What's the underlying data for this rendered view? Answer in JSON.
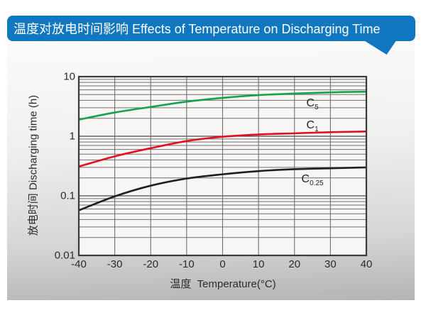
{
  "banner": {
    "title": "温度对放电时间影响 Effects of Temperature on Discharging Time",
    "bg_color": "#1077c0",
    "text_color": "#ffffff"
  },
  "chart_data": {
    "type": "line",
    "title": "温度对放电时间影响 Effects of Temperature on Discharging Time",
    "xlabel": "温度  Temperature(°C)",
    "ylabel": "放电时间 Discharging time (h)",
    "x_scale": "linear",
    "y_scale": "log",
    "xlim": [
      -40,
      40
    ],
    "ylim": [
      0.01,
      10
    ],
    "grid": true,
    "x_ticks": [
      -40,
      -30,
      -20,
      -10,
      0,
      10,
      20,
      30,
      40
    ],
    "y_ticks": [
      {
        "value": 10,
        "label": "10"
      },
      {
        "value": 1,
        "label": "1"
      },
      {
        "value": 0.1,
        "label": "0.1"
      },
      {
        "value": 0.01,
        "label": "0.01"
      }
    ],
    "x": [
      -40,
      -30,
      -20,
      -10,
      0,
      10,
      20,
      30,
      40
    ],
    "series": [
      {
        "name": "C5",
        "label_main": "C",
        "label_sub": "5",
        "color": "#14a24c",
        "values": [
          1.9,
          2.5,
          3.1,
          3.8,
          4.4,
          4.9,
          5.2,
          5.45,
          5.6
        ],
        "label_at": {
          "t": 25,
          "v": 3.4
        }
      },
      {
        "name": "C1",
        "label_main": "C",
        "label_sub": "1",
        "color": "#e30f1e",
        "values": [
          0.31,
          0.46,
          0.63,
          0.83,
          0.98,
          1.07,
          1.12,
          1.17,
          1.2
        ],
        "label_at": {
          "t": 25,
          "v": 1.45
        }
      },
      {
        "name": "C0.25",
        "label_main": "C",
        "label_sub": "0.25",
        "color": "#1f1f1f",
        "values": [
          0.057,
          0.098,
          0.148,
          0.195,
          0.23,
          0.26,
          0.28,
          0.29,
          0.3
        ],
        "label_at": {
          "t": 25,
          "v": 0.185
        }
      }
    ],
    "style": {
      "plot_bg": "#f7f6f4",
      "grid_minor": "#6f6f6f",
      "grid_major": "#4a4a4a",
      "frame": "#3a3a3a"
    }
  }
}
